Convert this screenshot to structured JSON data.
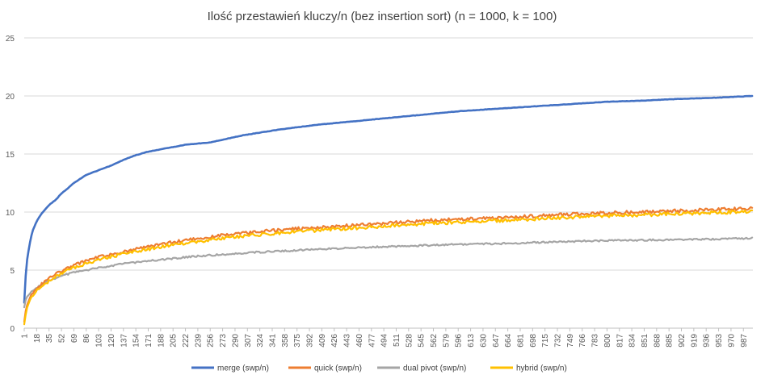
{
  "chart_data": {
    "type": "line",
    "title": "Ilość przestawień kluczy/n (bez insertion sort) (n = 1000, k = 100)",
    "xlabel": "",
    "ylabel": "",
    "x_range": [
      1,
      1000
    ],
    "ylim": [
      0,
      25
    ],
    "y_ticks": [
      0,
      5,
      10,
      15,
      20,
      25
    ],
    "x_tick_labels": [
      "1",
      "18",
      "35",
      "52",
      "69",
      "86",
      "103",
      "120",
      "137",
      "154",
      "171",
      "188",
      "205",
      "222",
      "239",
      "256",
      "273",
      "290",
      "307",
      "324",
      "341",
      "358",
      "375",
      "392",
      "409",
      "426",
      "443",
      "460",
      "477",
      "494",
      "511",
      "528",
      "545",
      "562",
      "579",
      "596",
      "613",
      "630",
      "647",
      "664",
      "681",
      "698",
      "715",
      "732",
      "749",
      "766",
      "783",
      "800",
      "817",
      "834",
      "851",
      "868",
      "885",
      "902",
      "919",
      "936",
      "953",
      "970",
      "987"
    ],
    "grid": "horizontal",
    "legend_position": "bottom",
    "series": [
      {
        "name": "merge (swp/n)",
        "color": "#4472C4",
        "x": [
          1,
          3,
          5,
          8,
          12,
          18,
          25,
          35,
          45,
          52,
          60,
          69,
          86,
          103,
          120,
          137,
          154,
          171,
          188,
          205,
          222,
          256,
          300,
          350,
          400,
          450,
          500,
          550,
          600,
          650,
          700,
          750,
          800,
          850,
          900,
          950,
          1000
        ],
        "values": [
          2.2,
          4.5,
          5.9,
          7.1,
          8.3,
          9.2,
          9.9,
          10.6,
          11.1,
          11.6,
          12.0,
          12.5,
          13.2,
          13.6,
          14.0,
          14.5,
          14.9,
          15.2,
          15.4,
          15.6,
          15.8,
          16.0,
          16.6,
          17.1,
          17.5,
          17.8,
          18.1,
          18.4,
          18.7,
          18.9,
          19.1,
          19.3,
          19.5,
          19.6,
          19.75,
          19.85,
          20.0
        ]
      },
      {
        "name": "quick (swp/n)",
        "color": "#ED7D31",
        "x": [
          1,
          3,
          5,
          10,
          18,
          25,
          35,
          52,
          69,
          86,
          103,
          137,
          171,
          205,
          239,
          273,
          307,
          358,
          409,
          460,
          511,
          562,
          613,
          664,
          715,
          766,
          817,
          868,
          919,
          970,
          1000
        ],
        "values": [
          0.6,
          1.5,
          2.0,
          2.8,
          3.4,
          3.8,
          4.3,
          4.9,
          5.4,
          5.8,
          6.1,
          6.6,
          7.0,
          7.4,
          7.7,
          8.0,
          8.2,
          8.5,
          8.7,
          8.9,
          9.1,
          9.3,
          9.4,
          9.55,
          9.7,
          9.85,
          9.95,
          10.05,
          10.15,
          10.25,
          10.3
        ]
      },
      {
        "name": "dual pivot (swp/n)",
        "color": "#A5A5A5",
        "x": [
          1,
          3,
          5,
          10,
          18,
          25,
          35,
          52,
          69,
          86,
          103,
          137,
          171,
          205,
          239,
          273,
          307,
          358,
          409,
          460,
          511,
          562,
          613,
          664,
          715,
          766,
          817,
          868,
          919,
          970,
          1000
        ],
        "values": [
          1.8,
          2.4,
          2.7,
          3.1,
          3.5,
          3.8,
          4.1,
          4.5,
          4.8,
          5.0,
          5.2,
          5.55,
          5.8,
          6.0,
          6.2,
          6.35,
          6.5,
          6.65,
          6.8,
          6.95,
          7.05,
          7.15,
          7.25,
          7.3,
          7.4,
          7.5,
          7.55,
          7.6,
          7.65,
          7.7,
          7.75
        ]
      },
      {
        "name": "hybrid (swp/n)",
        "color": "#FFC000",
        "x": [
          1,
          3,
          5,
          10,
          18,
          25,
          35,
          52,
          69,
          86,
          103,
          137,
          171,
          205,
          239,
          273,
          307,
          358,
          409,
          460,
          511,
          562,
          613,
          664,
          715,
          766,
          817,
          868,
          919,
          970,
          1000
        ],
        "values": [
          0.3,
          1.2,
          1.8,
          2.6,
          3.2,
          3.6,
          4.1,
          4.7,
          5.2,
          5.6,
          5.9,
          6.4,
          6.8,
          7.2,
          7.45,
          7.75,
          7.95,
          8.25,
          8.45,
          8.65,
          8.85,
          9.05,
          9.15,
          9.3,
          9.45,
          9.6,
          9.7,
          9.8,
          9.9,
          10.0,
          10.05
        ]
      }
    ]
  }
}
